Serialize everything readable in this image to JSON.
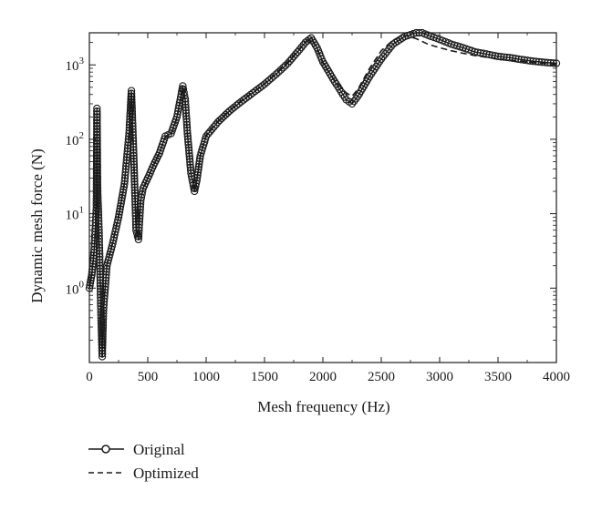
{
  "chart_data": {
    "type": "line",
    "xlabel": "Mesh frequency (Hz)",
    "ylabel": "Dynamic mesh force (N)",
    "xlim": [
      0,
      4000
    ],
    "ylim": [
      0.1,
      2700
    ],
    "yscale": "log",
    "grid": false,
    "legend_position": "bottom-left",
    "x_ticks": [
      0,
      500,
      1000,
      1500,
      2000,
      2500,
      3000,
      3500,
      4000
    ],
    "x_tick_labels": [
      "0",
      "500",
      "1000",
      "1500",
      "2000",
      "2500",
      "3000",
      "3500",
      "4000"
    ],
    "y_ticks": [
      {
        "value": 1,
        "base": "10",
        "exp": "0"
      },
      {
        "value": 10,
        "base": "10",
        "exp": "1"
      },
      {
        "value": 100,
        "base": "10",
        "exp": "2"
      },
      {
        "value": 1000,
        "base": "10",
        "exp": "3"
      }
    ],
    "series": [
      {
        "name": "Original",
        "style": "solid-circle",
        "x": [
          0,
          20,
          40,
          60,
          65,
          70,
          80,
          90,
          100,
          110,
          120,
          150,
          200,
          250,
          300,
          340,
          360,
          380,
          400,
          420,
          440,
          460,
          500,
          550,
          600,
          650,
          700,
          750,
          800,
          820,
          840,
          870,
          900,
          920,
          950,
          1000,
          1100,
          1200,
          1300,
          1400,
          1500,
          1600,
          1700,
          1800,
          1850,
          1900,
          1950,
          2000,
          2100,
          2200,
          2250,
          2300,
          2400,
          2500,
          2600,
          2700,
          2800,
          2850,
          2900,
          3000,
          3100,
          3200,
          3300,
          3400,
          3500,
          3600,
          3700,
          3800,
          3900,
          4000
        ],
        "y": [
          1.0,
          1.5,
          3.0,
          12.0,
          260.0,
          22.0,
          8.0,
          2.0,
          0.4,
          0.12,
          0.5,
          2.0,
          4.0,
          9.0,
          25.0,
          120.0,
          450.0,
          60.0,
          6.0,
          4.5,
          15.0,
          22.0,
          30.0,
          45.0,
          65.0,
          110.0,
          120.0,
          200.0,
          520.0,
          350.0,
          120.0,
          35.0,
          20.0,
          28.0,
          60.0,
          110.0,
          170.0,
          240.0,
          320.0,
          420.0,
          550.0,
          750.0,
          1050.0,
          1600.0,
          2000.0,
          2300.0,
          1700.0,
          1100.0,
          600.0,
          340.0,
          300.0,
          380.0,
          700.0,
          1200.0,
          1900.0,
          2400.0,
          2700.0,
          2700.0,
          2500.0,
          2200.0,
          1900.0,
          1700.0,
          1500.0,
          1400.0,
          1300.0,
          1250.0,
          1180.0,
          1120.0,
          1080.0,
          1050.0
        ]
      },
      {
        "name": "Optimized",
        "style": "dashed",
        "x": [
          0,
          20,
          40,
          60,
          70,
          80,
          90,
          100,
          110,
          120,
          150,
          200,
          250,
          300,
          340,
          360,
          380,
          400,
          420,
          440,
          460,
          500,
          550,
          600,
          650,
          700,
          750,
          800,
          820,
          840,
          870,
          900,
          920,
          950,
          1000,
          1100,
          1200,
          1300,
          1400,
          1500,
          1600,
          1700,
          1800,
          1850,
          1900,
          1950,
          2000,
          2100,
          2200,
          2250,
          2300,
          2400,
          2500,
          2600,
          2700,
          2800,
          2900,
          3000,
          3100,
          3200,
          3300,
          3400,
          3500,
          3600,
          3700,
          3800,
          3900,
          4000
        ],
        "y": [
          1.0,
          1.6,
          3.2,
          10.0,
          18.0,
          7.0,
          1.8,
          0.35,
          0.11,
          0.5,
          2.1,
          4.2,
          9.5,
          26.0,
          130.0,
          420.0,
          55.0,
          6.5,
          5.0,
          16.0,
          21.0,
          30.0,
          46.0,
          66.0,
          105.0,
          115.0,
          190.0,
          480.0,
          320.0,
          110.0,
          34.0,
          21.0,
          29.0,
          62.0,
          115.0,
          175.0,
          245.0,
          330.0,
          430.0,
          560.0,
          780.0,
          1100.0,
          1650.0,
          2050.0,
          2250.0,
          1650.0,
          1050.0,
          620.0,
          420.0,
          380.0,
          470.0,
          900.0,
          1550.0,
          2150.0,
          2500.0,
          2250.0,
          1900.0,
          1700.0,
          1550.0,
          1430.0,
          1340.0,
          1270.0,
          1210.0,
          1160.0,
          1120.0,
          1080.0,
          1050.0,
          1030.0
        ]
      }
    ]
  }
}
